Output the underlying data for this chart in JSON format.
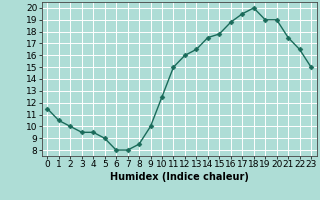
{
  "x": [
    0,
    1,
    2,
    3,
    4,
    5,
    6,
    7,
    8,
    9,
    10,
    11,
    12,
    13,
    14,
    15,
    16,
    17,
    18,
    19,
    20,
    21,
    22,
    23
  ],
  "y": [
    11.5,
    10.5,
    10.0,
    9.5,
    9.5,
    9.0,
    8.0,
    8.0,
    8.5,
    10.0,
    12.5,
    15.0,
    16.0,
    16.5,
    17.5,
    17.8,
    18.8,
    19.5,
    20.0,
    19.0,
    19.0,
    17.5,
    16.5,
    15.0
  ],
  "line_color": "#1a6b5a",
  "marker": "D",
  "marker_size": 2.5,
  "bg_color": "#aeddd6",
  "grid_color": "#ffffff",
  "xlabel": "Humidex (Indice chaleur)",
  "xlim": [
    -0.5,
    23.5
  ],
  "ylim": [
    7.5,
    20.5
  ],
  "yticks": [
    8,
    9,
    10,
    11,
    12,
    13,
    14,
    15,
    16,
    17,
    18,
    19,
    20
  ],
  "xticks": [
    0,
    1,
    2,
    3,
    4,
    5,
    6,
    7,
    8,
    9,
    10,
    11,
    12,
    13,
    14,
    15,
    16,
    17,
    18,
    19,
    20,
    21,
    22,
    23
  ],
  "xlabel_fontsize": 7,
  "tick_fontsize": 6.5,
  "line_width": 1.0
}
